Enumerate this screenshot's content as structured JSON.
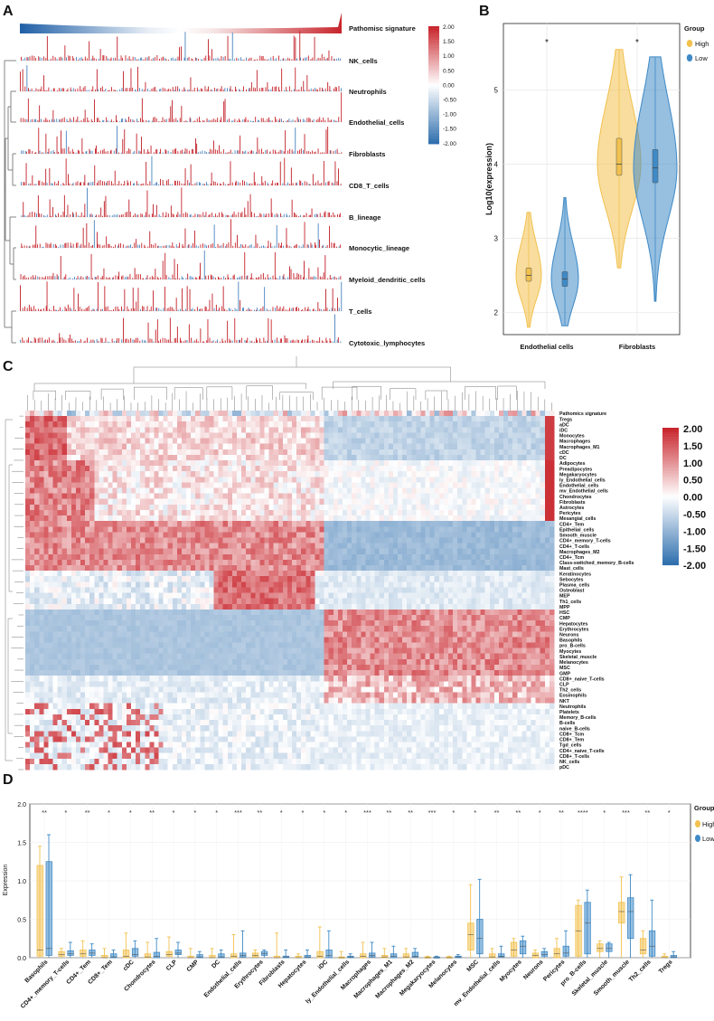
{
  "panels": {
    "a": "A",
    "b": "B",
    "c": "C",
    "d": "D"
  },
  "chart_data": [
    {
      "id": "A",
      "type": "heatmap",
      "title": "",
      "header_row": "Pathomisc signature",
      "rows": [
        "NK_cells",
        "Neutrophils",
        "Endothelial_cells",
        "Fibroblasts",
        "CD8_T_cells",
        "B_lineage",
        "Monocytic_lineage",
        "Myeloid_dendritic_cells",
        "T_cells",
        "Cytotoxic_lymphocytes"
      ],
      "colorbar": {
        "ticks": [
          "2.00",
          "1.50",
          "1.00",
          "0.50",
          "0.00",
          "-0.50",
          "-1.00",
          "-1.50",
          "-2.00"
        ],
        "min": -2,
        "max": 2,
        "colors": [
          "#2f6fae",
          "#ffffff",
          "#c8252c"
        ]
      }
    },
    {
      "id": "B",
      "type": "violin",
      "ylabel": "Log10(expression)",
      "ylim": [
        1.7,
        5.9
      ],
      "yticks": [
        "2",
        "3",
        "4",
        "5"
      ],
      "categories": [
        "Endothelial cells",
        "Fibroblasts"
      ],
      "significance": [
        "*",
        "*"
      ],
      "legend": {
        "title": "Group",
        "entries": [
          "High",
          "Low"
        ]
      },
      "series": [
        {
          "name": "High",
          "color": "#f2c14e",
          "min": [
            1.8,
            2.6
          ],
          "q1": [
            2.42,
            3.85
          ],
          "median": [
            2.5,
            4.0
          ],
          "q3": [
            2.6,
            4.35
          ],
          "max": [
            3.35,
            5.55
          ]
        },
        {
          "name": "Low",
          "color": "#3f8ac6",
          "min": [
            1.82,
            2.15
          ],
          "q1": [
            2.35,
            3.75
          ],
          "median": [
            2.45,
            3.95
          ],
          "q3": [
            2.55,
            4.2
          ],
          "max": [
            3.55,
            5.45
          ]
        }
      ]
    },
    {
      "id": "C",
      "type": "heatmap",
      "rows": [
        "Pathomics signature",
        "Tregs",
        "aDC",
        "iDC",
        "Monocytes",
        "Macrophages",
        "Macrophages_M1",
        "cDC",
        "DC",
        "Adipocytes",
        "Preadipocytes",
        "Megakaryocytes",
        "ly_Endothelial_cells",
        "Endothelial_cells",
        "mv_Endothelial_cells",
        "Chondrocytes",
        "Fibroblasts",
        "Astrocytes",
        "Pericytes",
        "Mesangial_cells",
        "CD4+_Tem",
        "Epithelial_cells",
        "Smooth_muscle",
        "CD4+_memory_T-cells",
        "CD4+_T-cells",
        "Macrophages_M2",
        "CD4+_Tcm",
        "Class-switched_memory_B-cells",
        "Mast_cells",
        "Keratinocytes",
        "Sebocytes",
        "Plasma_cells",
        "Osteoblast",
        "MEP",
        "Th1_cells",
        "MPP",
        "HSC",
        "CMP",
        "Hepatocytes",
        "Erythrocytes",
        "Neurons",
        "Basophils",
        "pro_B-cells",
        "Myocytes",
        "Skeletal_muscle",
        "Melanocytes",
        "MSC",
        "GMP",
        "CD8+_naive_T-cells",
        "CLP",
        "Th2_cells",
        "Eosinophils",
        "NKT",
        "Neutrophils",
        "Platelets",
        "Memory_B-cells",
        "B-cells",
        "naive_B-cells",
        "CD8+_Tcm",
        "CD8+_Tem",
        "Tgd_cells",
        "CD4+_naive_T-cells",
        "CD8+_T-cells",
        "NK_cells",
        "pDC"
      ],
      "colorbar": {
        "ticks": [
          "2.00",
          "1.50",
          "1.00",
          "0.50",
          "0.00",
          "-0.50",
          "-1.00",
          "-1.50",
          "-2.00"
        ],
        "min": -2,
        "max": 2,
        "colors": [
          "#2f6fae",
          "#ffffff",
          "#c8252c"
        ]
      }
    },
    {
      "id": "D",
      "type": "box",
      "ylabel": "Expression",
      "ylim": [
        0,
        2.0
      ],
      "yticks": [
        "0.0",
        "0.5",
        "1.0",
        "1.5",
        "2.0"
      ],
      "legend": {
        "title": "Group",
        "entries": [
          "High",
          "Low"
        ]
      },
      "categories": [
        "Basophils",
        "CD4+_memory_T-cells",
        "CD4+_Tem",
        "CD8+_Tem",
        "cDC",
        "Chondrocytes",
        "CLP",
        "CMP",
        "DC",
        "Endothelial_cells",
        "Erythrocytes",
        "Fibroblasts",
        "Hepatocytes",
        "iDC",
        "ly_Endothelial_cells",
        "Macrophages",
        "Macrophages_M1",
        "Macrophages_M2",
        "Megakaryocytes",
        "Melanocytes",
        "MSC",
        "mv_Endothelial_cells",
        "Myocytes",
        "Neurons",
        "Pericytes",
        "pro_B-cells",
        "Skeletal_muscle",
        "Smooth_muscle",
        "Th2_cells",
        "Tregs"
      ],
      "significance": [
        "**",
        "*",
        "**",
        "*",
        "*",
        "**",
        "*",
        "*",
        "*",
        "***",
        "**",
        "*",
        "*",
        "*",
        "*",
        "***",
        "**",
        "**",
        "***",
        "*",
        "*",
        "**",
        "**",
        "*",
        "**",
        "****",
        "*",
        "***",
        "**",
        "*"
      ],
      "series": [
        {
          "name": "High",
          "color": "#f2c14e",
          "min": [
            0.0,
            0.0,
            0.0,
            0.0,
            0.0,
            0.0,
            0.0,
            0.0,
            0.0,
            0.0,
            0.0,
            0.0,
            0.0,
            0.0,
            0.0,
            0.0,
            0.0,
            0.0,
            0.0,
            0.0,
            0.0,
            0.0,
            0.0,
            0.0,
            0.0,
            0.0,
            0.0,
            0.0,
            0.0,
            0.0
          ],
          "q1": [
            0.02,
            0.02,
            0.02,
            0.0,
            0.0,
            0.0,
            0.02,
            0.0,
            0.0,
            0.0,
            0.01,
            0.0,
            0.0,
            0.0,
            0.0,
            0.0,
            0.0,
            0.0,
            0.0,
            0.0,
            0.1,
            0.0,
            0.02,
            0.0,
            0.0,
            0.02,
            0.08,
            0.45,
            0.05,
            0.0
          ],
          "median": [
            0.1,
            0.04,
            0.05,
            0.0,
            0.02,
            0.01,
            0.04,
            0.0,
            0.0,
            0.02,
            0.03,
            0.0,
            0.0,
            0.02,
            0.0,
            0.02,
            0.01,
            0.01,
            0.0,
            0.0,
            0.3,
            0.01,
            0.1,
            0.03,
            0.05,
            0.35,
            0.12,
            0.6,
            0.1,
            0.0
          ],
          "q3": [
            1.2,
            0.08,
            0.1,
            0.03,
            0.1,
            0.05,
            0.08,
            0.02,
            0.03,
            0.05,
            0.06,
            0.02,
            0.02,
            0.08,
            0.01,
            0.05,
            0.03,
            0.05,
            0.01,
            0.01,
            0.45,
            0.05,
            0.2,
            0.06,
            0.12,
            0.68,
            0.18,
            0.72,
            0.25,
            0.02
          ],
          "max": [
            1.45,
            0.12,
            0.22,
            0.12,
            0.32,
            0.2,
            0.27,
            0.12,
            0.12,
            0.3,
            0.1,
            0.32,
            0.05,
            0.4,
            0.08,
            0.2,
            0.12,
            0.12,
            0.02,
            0.02,
            0.95,
            0.12,
            0.25,
            0.1,
            0.25,
            0.75,
            0.22,
            1.05,
            0.35,
            0.05
          ]
        },
        {
          "name": "Low",
          "color": "#3f8ac6",
          "min": [
            0.0,
            0.0,
            0.0,
            0.0,
            0.0,
            0.0,
            0.0,
            0.0,
            0.0,
            0.0,
            0.0,
            0.0,
            0.0,
            0.0,
            0.0,
            0.0,
            0.0,
            0.0,
            0.0,
            0.0,
            0.0,
            0.0,
            0.0,
            0.0,
            0.0,
            0.0,
            0.0,
            0.0,
            0.0,
            0.0
          ],
          "q1": [
            0.03,
            0.03,
            0.03,
            0.0,
            0.02,
            0.0,
            0.04,
            0.0,
            0.0,
            0.01,
            0.03,
            0.0,
            0.0,
            0.0,
            0.0,
            0.01,
            0.0,
            0.01,
            0.0,
            0.0,
            0.05,
            0.01,
            0.05,
            0.02,
            0.02,
            0.05,
            0.08,
            0.25,
            0.02,
            0.0
          ],
          "median": [
            0.12,
            0.05,
            0.06,
            0.01,
            0.04,
            0.02,
            0.06,
            0.01,
            0.01,
            0.03,
            0.05,
            0.01,
            0.01,
            0.03,
            0.01,
            0.03,
            0.02,
            0.02,
            0.0,
            0.01,
            0.25,
            0.02,
            0.15,
            0.04,
            0.06,
            0.45,
            0.12,
            0.6,
            0.15,
            0.01
          ],
          "q3": [
            1.25,
            0.09,
            0.1,
            0.05,
            0.12,
            0.07,
            0.1,
            0.04,
            0.05,
            0.06,
            0.08,
            0.02,
            0.03,
            0.1,
            0.02,
            0.06,
            0.05,
            0.07,
            0.01,
            0.02,
            0.5,
            0.05,
            0.22,
            0.08,
            0.15,
            0.72,
            0.18,
            0.78,
            0.35,
            0.03
          ],
          "max": [
            1.6,
            0.2,
            0.18,
            0.1,
            0.22,
            0.25,
            0.2,
            0.08,
            0.1,
            0.35,
            0.1,
            0.1,
            0.1,
            0.35,
            0.05,
            0.2,
            0.15,
            0.12,
            0.02,
            0.04,
            1.02,
            0.15,
            0.28,
            0.12,
            0.35,
            0.88,
            0.2,
            1.08,
            0.75,
            0.08
          ]
        }
      ]
    }
  ]
}
